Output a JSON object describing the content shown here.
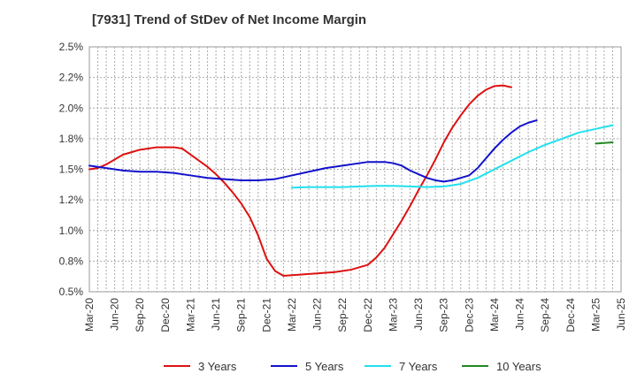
{
  "chart_data": {
    "type": "line",
    "title": "[7931]  Trend of StDev of Net Income Margin",
    "xlabel": "",
    "ylabel": "",
    "x_ticks": [
      "Mar-20",
      "Jun-20",
      "Sep-20",
      "Dec-20",
      "Mar-21",
      "Jun-21",
      "Sep-21",
      "Dec-21",
      "Mar-22",
      "Jun-22",
      "Sep-22",
      "Dec-22",
      "Mar-23",
      "Jun-23",
      "Sep-23",
      "Dec-23",
      "Mar-24",
      "Jun-24",
      "Sep-24",
      "Dec-24",
      "Mar-25",
      "Jun-25"
    ],
    "y_ticks": [
      "0.5%",
      "0.8%",
      "1.0%",
      "1.2%",
      "1.5%",
      "1.8%",
      "2.0%",
      "2.2%",
      "2.5%"
    ],
    "ylim": [
      0.5,
      2.5
    ],
    "y_unit": "%",
    "grid": true,
    "legend_position": "bottom",
    "colors": {
      "3 Years": "#dd1111",
      "5 Years": "#1111cc",
      "7 Years": "#22e0ee",
      "10 Years": "#228822"
    },
    "series": [
      {
        "name": "3 Years",
        "color": "#dd1111",
        "points": [
          [
            0,
            1.5
          ],
          [
            1,
            1.51
          ],
          [
            2,
            1.54
          ],
          [
            3,
            1.58
          ],
          [
            4,
            1.62
          ],
          [
            5,
            1.64
          ],
          [
            6,
            1.66
          ],
          [
            7,
            1.67
          ],
          [
            8,
            1.68
          ],
          [
            9,
            1.68
          ],
          [
            10,
            1.68
          ],
          [
            11,
            1.67
          ],
          [
            12,
            1.62
          ],
          [
            13,
            1.57
          ],
          [
            14,
            1.52
          ],
          [
            15,
            1.46
          ],
          [
            16,
            1.39
          ],
          [
            17,
            1.31
          ],
          [
            18,
            1.22
          ],
          [
            19,
            1.11
          ],
          [
            20,
            0.96
          ],
          [
            21,
            0.77
          ],
          [
            22,
            0.67
          ],
          [
            23,
            0.63
          ],
          [
            24,
            0.635
          ],
          [
            25,
            0.64
          ],
          [
            26,
            0.645
          ],
          [
            27,
            0.65
          ],
          [
            28,
            0.655
          ],
          [
            29,
            0.66
          ],
          [
            30,
            0.67
          ],
          [
            31,
            0.68
          ],
          [
            32,
            0.7
          ],
          [
            33,
            0.72
          ],
          [
            34,
            0.78
          ],
          [
            35,
            0.86
          ],
          [
            36,
            0.97
          ],
          [
            37,
            1.08
          ],
          [
            38,
            1.2
          ],
          [
            39,
            1.33
          ],
          [
            40,
            1.45
          ],
          [
            41,
            1.58
          ],
          [
            42,
            1.72
          ],
          [
            43,
            1.84
          ],
          [
            44,
            1.94
          ],
          [
            45,
            2.03
          ],
          [
            46,
            2.1
          ],
          [
            47,
            2.15
          ],
          [
            48,
            2.18
          ],
          [
            49,
            2.185
          ],
          [
            50,
            2.17
          ]
        ]
      },
      {
        "name": "5 Years",
        "color": "#1111cc",
        "points": [
          [
            0,
            1.53
          ],
          [
            2,
            1.51
          ],
          [
            4,
            1.49
          ],
          [
            6,
            1.48
          ],
          [
            8,
            1.48
          ],
          [
            10,
            1.47
          ],
          [
            12,
            1.45
          ],
          [
            14,
            1.43
          ],
          [
            16,
            1.42
          ],
          [
            18,
            1.41
          ],
          [
            20,
            1.41
          ],
          [
            22,
            1.42
          ],
          [
            24,
            1.45
          ],
          [
            26,
            1.48
          ],
          [
            28,
            1.51
          ],
          [
            30,
            1.53
          ],
          [
            32,
            1.55
          ],
          [
            33,
            1.56
          ],
          [
            34,
            1.56
          ],
          [
            35,
            1.56
          ],
          [
            36,
            1.55
          ],
          [
            37,
            1.53
          ],
          [
            38,
            1.49
          ],
          [
            39,
            1.46
          ],
          [
            40,
            1.43
          ],
          [
            41,
            1.41
          ],
          [
            42,
            1.4
          ],
          [
            43,
            1.41
          ],
          [
            44,
            1.43
          ],
          [
            45,
            1.45
          ],
          [
            46,
            1.51
          ],
          [
            47,
            1.59
          ],
          [
            48,
            1.67
          ],
          [
            49,
            1.74
          ],
          [
            50,
            1.8
          ],
          [
            51,
            1.85
          ],
          [
            52,
            1.88
          ],
          [
            53,
            1.9
          ]
        ]
      },
      {
        "name": "7 Years",
        "color": "#22e0ee",
        "points": [
          [
            24,
            1.35
          ],
          [
            26,
            1.355
          ],
          [
            28,
            1.355
          ],
          [
            30,
            1.355
          ],
          [
            32,
            1.36
          ],
          [
            34,
            1.365
          ],
          [
            36,
            1.365
          ],
          [
            38,
            1.36
          ],
          [
            40,
            1.355
          ],
          [
            42,
            1.36
          ],
          [
            44,
            1.38
          ],
          [
            46,
            1.43
          ],
          [
            48,
            1.5
          ],
          [
            50,
            1.57
          ],
          [
            52,
            1.64
          ],
          [
            54,
            1.7
          ],
          [
            56,
            1.75
          ],
          [
            58,
            1.8
          ],
          [
            60,
            1.83
          ],
          [
            62,
            1.86
          ]
        ]
      },
      {
        "name": "10 Years",
        "color": "#228822",
        "points": [
          [
            60,
            1.71
          ],
          [
            62,
            1.72
          ]
        ]
      }
    ]
  }
}
